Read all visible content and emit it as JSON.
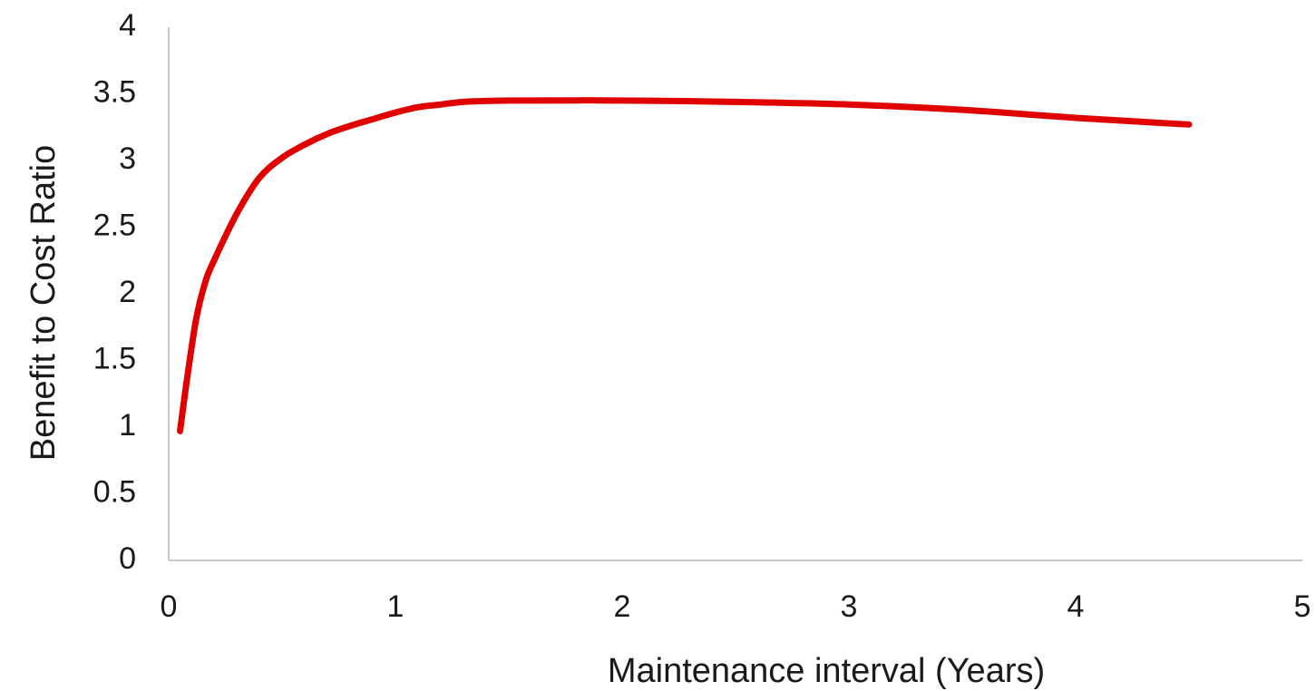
{
  "chart_data": {
    "type": "line",
    "xlabel": "Maintenance interval (Years)",
    "ylabel": "Benefit to Cost Ratio",
    "xlim": [
      0,
      5
    ],
    "ylim": [
      0,
      4
    ],
    "x_ticks": [
      "0",
      "1",
      "2",
      "3",
      "4",
      "5"
    ],
    "y_ticks": [
      "0",
      "0.5",
      "1",
      "1.5",
      "2",
      "2.5",
      "3",
      "3.5",
      "4"
    ],
    "grid": false,
    "legend": "none",
    "series": [
      {
        "color": "#e00000",
        "x": [
          0.05,
          0.08,
          0.12,
          0.16,
          0.2,
          0.3,
          0.4,
          0.5,
          0.6,
          0.7,
          0.8,
          0.9,
          1.0,
          1.1,
          1.2,
          1.3,
          1.5,
          2.0,
          2.5,
          3.0,
          3.5,
          4.0,
          4.5
        ],
        "y": [
          0.97,
          1.35,
          1.8,
          2.08,
          2.25,
          2.6,
          2.87,
          3.02,
          3.12,
          3.2,
          3.26,
          3.31,
          3.36,
          3.4,
          3.42,
          3.44,
          3.45,
          3.45,
          3.44,
          3.42,
          3.38,
          3.32,
          3.27
        ]
      }
    ]
  }
}
